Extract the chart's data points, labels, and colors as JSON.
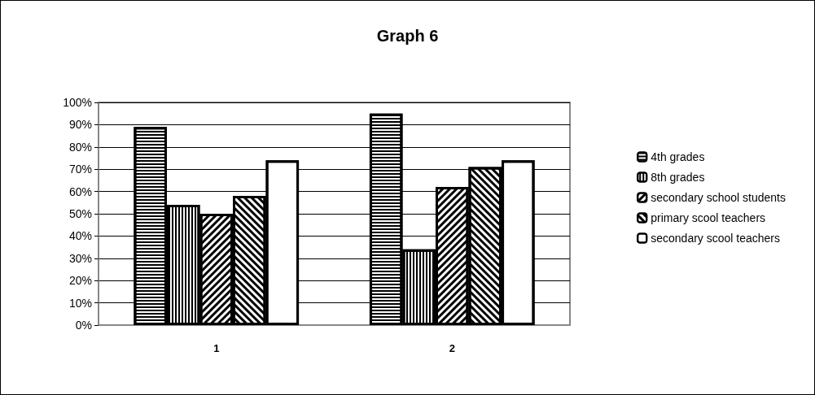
{
  "chart_data": {
    "type": "bar",
    "title": "Graph 6",
    "categories": [
      "1",
      "2"
    ],
    "series": [
      {
        "name": "4th grades",
        "color": "#000000",
        "values": [
          89,
          95
        ]
      },
      {
        "name": "8th grades",
        "color": "#000000",
        "values": [
          54,
          34
        ]
      },
      {
        "name": "secondary school students",
        "color": "#000000",
        "values": [
          50,
          62
        ]
      },
      {
        "name": "primary scool teachers",
        "color": "#000000",
        "values": [
          58,
          71
        ]
      },
      {
        "name": "secondary scool teachers",
        "color": "#000000",
        "values": [
          74,
          74
        ]
      }
    ],
    "ylim": [
      0,
      100
    ],
    "yticks": [
      {
        "value": 0,
        "label": "0%"
      },
      {
        "value": 10,
        "label": "10%"
      },
      {
        "value": 20,
        "label": "20%"
      },
      {
        "value": 30,
        "label": "30%"
      },
      {
        "value": 40,
        "label": "40%"
      },
      {
        "value": 50,
        "label": "50%"
      },
      {
        "value": 60,
        "label": "60%"
      },
      {
        "value": 70,
        "label": "70%"
      },
      {
        "value": 80,
        "label": "80%"
      },
      {
        "value": 90,
        "label": "90%"
      },
      {
        "value": 100,
        "label": "100%"
      }
    ],
    "grid": "y",
    "legend": "right"
  }
}
